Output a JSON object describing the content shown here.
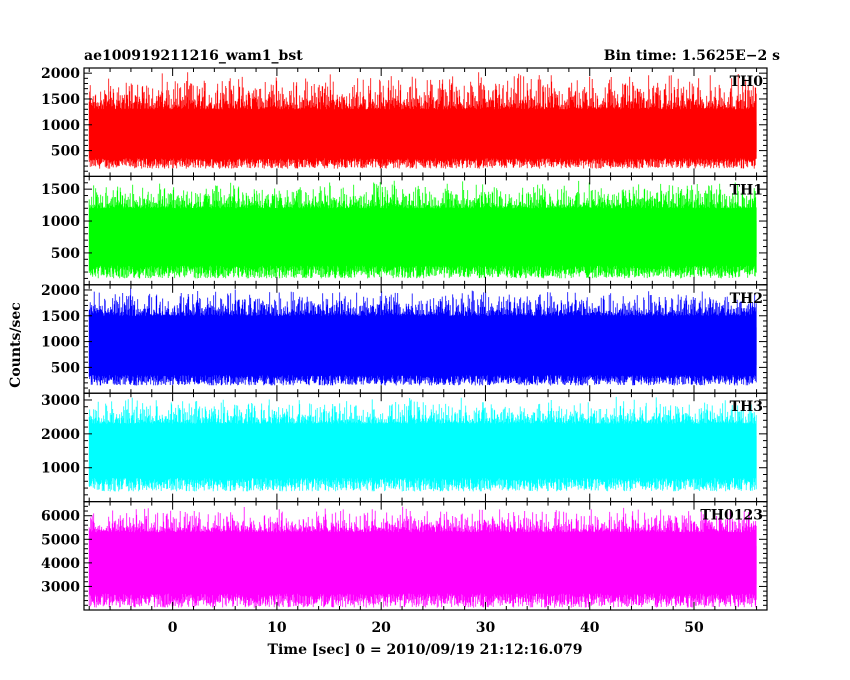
{
  "header": {
    "title": "ae100919211216_wam1_bst",
    "bin_time": "Bin time: 1.5625E−2 s"
  },
  "ylabel": "Counts/sec",
  "xlabel": "Time [sec] 0 = 2010/09/19 21:12:16.079",
  "chart_data": [
    {
      "type": "line",
      "name": "TH0",
      "color": "#ff0000",
      "xlim": [
        -8.5,
        57
      ],
      "ylim": [
        0,
        2100
      ],
      "x_ticks": [
        0,
        10,
        20,
        30,
        40,
        50
      ],
      "y_ticks": [
        500,
        1000,
        1500,
        2000
      ],
      "data_x_range": [
        -8,
        56
      ],
      "min_range": [
        150,
        350
      ],
      "max_range": [
        1300,
        2050
      ],
      "mean": 750
    },
    {
      "type": "line",
      "name": "TH1",
      "color": "#00ff00",
      "xlim": [
        -8.5,
        57
      ],
      "ylim": [
        0,
        1700
      ],
      "x_ticks": [
        0,
        10,
        20,
        30,
        40,
        50
      ],
      "y_ticks": [
        500,
        1000,
        1500
      ],
      "data_x_range": [
        -8,
        56
      ],
      "min_range": [
        100,
        300
      ],
      "max_range": [
        1200,
        1650
      ],
      "mean": 750
    },
    {
      "type": "line",
      "name": "TH2",
      "color": "#0000ff",
      "xlim": [
        -8.5,
        57
      ],
      "ylim": [
        0,
        2100
      ],
      "x_ticks": [
        0,
        10,
        20,
        30,
        40,
        50
      ],
      "y_ticks": [
        500,
        1000,
        1500,
        2000
      ],
      "data_x_range": [
        -8,
        56
      ],
      "min_range": [
        150,
        350
      ],
      "max_range": [
        1500,
        2050
      ],
      "mean": 1000
    },
    {
      "type": "line",
      "name": "TH3",
      "color": "#00ffff",
      "xlim": [
        -8.5,
        57
      ],
      "ylim": [
        0,
        3200
      ],
      "x_ticks": [
        0,
        10,
        20,
        30,
        40,
        50
      ],
      "y_ticks": [
        1000,
        2000,
        3000
      ],
      "data_x_range": [
        -8,
        56
      ],
      "min_range": [
        300,
        700
      ],
      "max_range": [
        2300,
        3100
      ],
      "mean": 1500
    },
    {
      "type": "line",
      "name": "TH0123",
      "color": "#ff00ff",
      "xlim": [
        -8.5,
        57
      ],
      "ylim": [
        2000,
        6600
      ],
      "x_ticks": [
        0,
        10,
        20,
        30,
        40,
        50
      ],
      "y_ticks": [
        3000,
        4000,
        5000,
        6000
      ],
      "data_x_range": [
        -8,
        56
      ],
      "min_range": [
        2100,
        2700
      ],
      "max_range": [
        5300,
        6400
      ],
      "mean": 4000
    }
  ]
}
